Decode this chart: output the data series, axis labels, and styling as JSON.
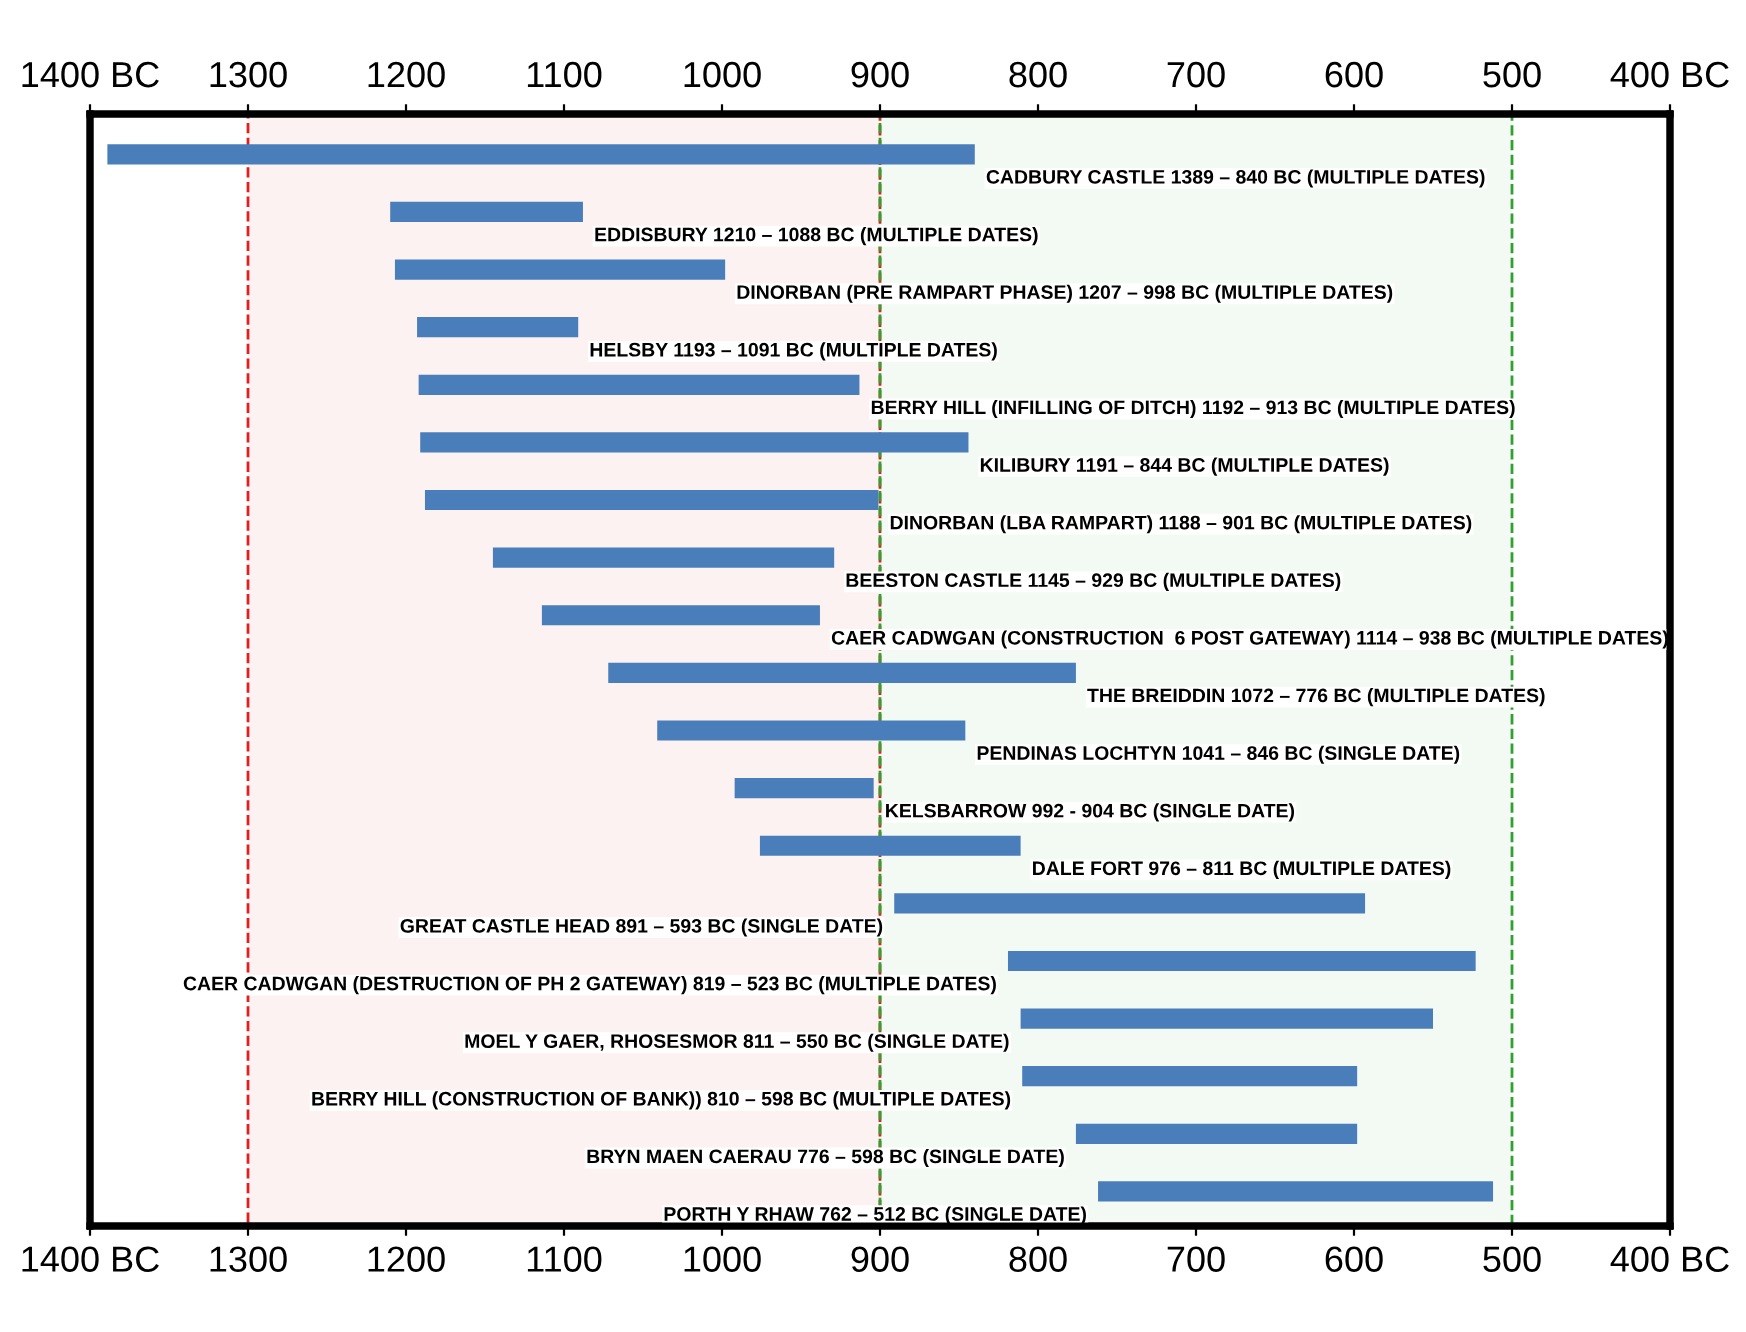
{
  "chart_data": {
    "type": "bar",
    "orientation": "horizontal",
    "color": "#4a7ebb",
    "categories": [
      null,
      null,
      null,
      null,
      null,
      null,
      null,
      null,
      null,
      null,
      null,
      null,
      null,
      null,
      null,
      null,
      null,
      null,
      null
    ],
    "base": [
      840,
      1088,
      998,
      1091,
      913,
      844,
      901,
      929,
      938,
      776,
      846,
      904,
      811,
      593,
      523,
      550,
      598,
      598,
      512
    ],
    "values": [
      549,
      122,
      209,
      102,
      279,
      347,
      287,
      216,
      176,
      296,
      195,
      88,
      165,
      298,
      296,
      261,
      212,
      178,
      250
    ],
    "xlim": [
      1400,
      400
    ],
    "xticks": [
      {
        "value": 1400,
        "label": "1400 BC"
      },
      1300,
      1200,
      1100,
      1000,
      900,
      800,
      700,
      600,
      500,
      {
        "value": 400,
        "label": "400 BC"
      }
    ],
    "x2lim": [
      1400,
      400
    ],
    "x2ticks": [
      {
        "value": 1400,
        "label": "1400 BC"
      },
      1300,
      1200,
      1100,
      1000,
      900,
      800,
      700,
      600,
      500,
      {
        "value": 400,
        "label": "400 BC"
      }
    ],
    "bands": [
      {
        "axis": "x",
        "from": 1300,
        "to": 900,
        "color": "#e02020"
      },
      {
        "axis": "x",
        "from": 900,
        "to": 500,
        "color": "#30a030"
      }
    ],
    "grid": false,
    "annotations": [
      "CADBURY CASTLE 1389 – 840 BC (MULTIPLE DATES)",
      "EDDISBURY 1210 – 1088 BC (MULTIPLE DATES)",
      "DINORBAN (PRE RAMPART PHASE) 1207 – 998 BC (MULTIPLE DATES)",
      "HELSBY 1193 – 1091 BC (MULTIPLE DATES)",
      "BERRY HILL (INFILLING OF DITCH) 1192 – 913 BC (MULTIPLE DATES)",
      "KILIBURY 1191 – 844 BC (MULTIPLE DATES)",
      "DINORBAN (LBA RAMPART) 1188 – 901 BC (MULTIPLE DATES)",
      "BEESTON CASTLE 1145 – 929 BC (MULTIPLE DATES)",
      "CAER CADWGAN (CONSTRUCTION  6 POST GATEWAY) 1114 – 938 BC (MULTIPLE DATES)",
      "THE BREIDDIN 1072 – 776 BC (MULTIPLE DATES)",
      "PENDINAS LOCHTYN 1041 – 846 BC (SINGLE DATE)",
      "KELSBARROW 992 - 904 BC (SINGLE DATE)",
      "DALE FORT 976 – 811 BC (MULTIPLE DATES)",
      "GREAT CASTLE HEAD 891 – 593 BC (SINGLE DATE)",
      "CAER CADWGAN (DESTRUCTION OF PH 2 GATEWAY) 819 – 523 BC (MULTIPLE DATES)",
      "MOEL Y GAER, RHOSESMOR 811 – 550 BC (SINGLE DATE)",
      "BERRY HILL (CONSTRUCTION OF BANK)) 810 – 598 BC (MULTIPLE DATES)",
      "BRYN MAEN CAERAU 776 – 598 BC (SINGLE DATE)",
      "PORTH Y RHAW 762 – 512 BC (SINGLE DATE)"
    ]
  }
}
